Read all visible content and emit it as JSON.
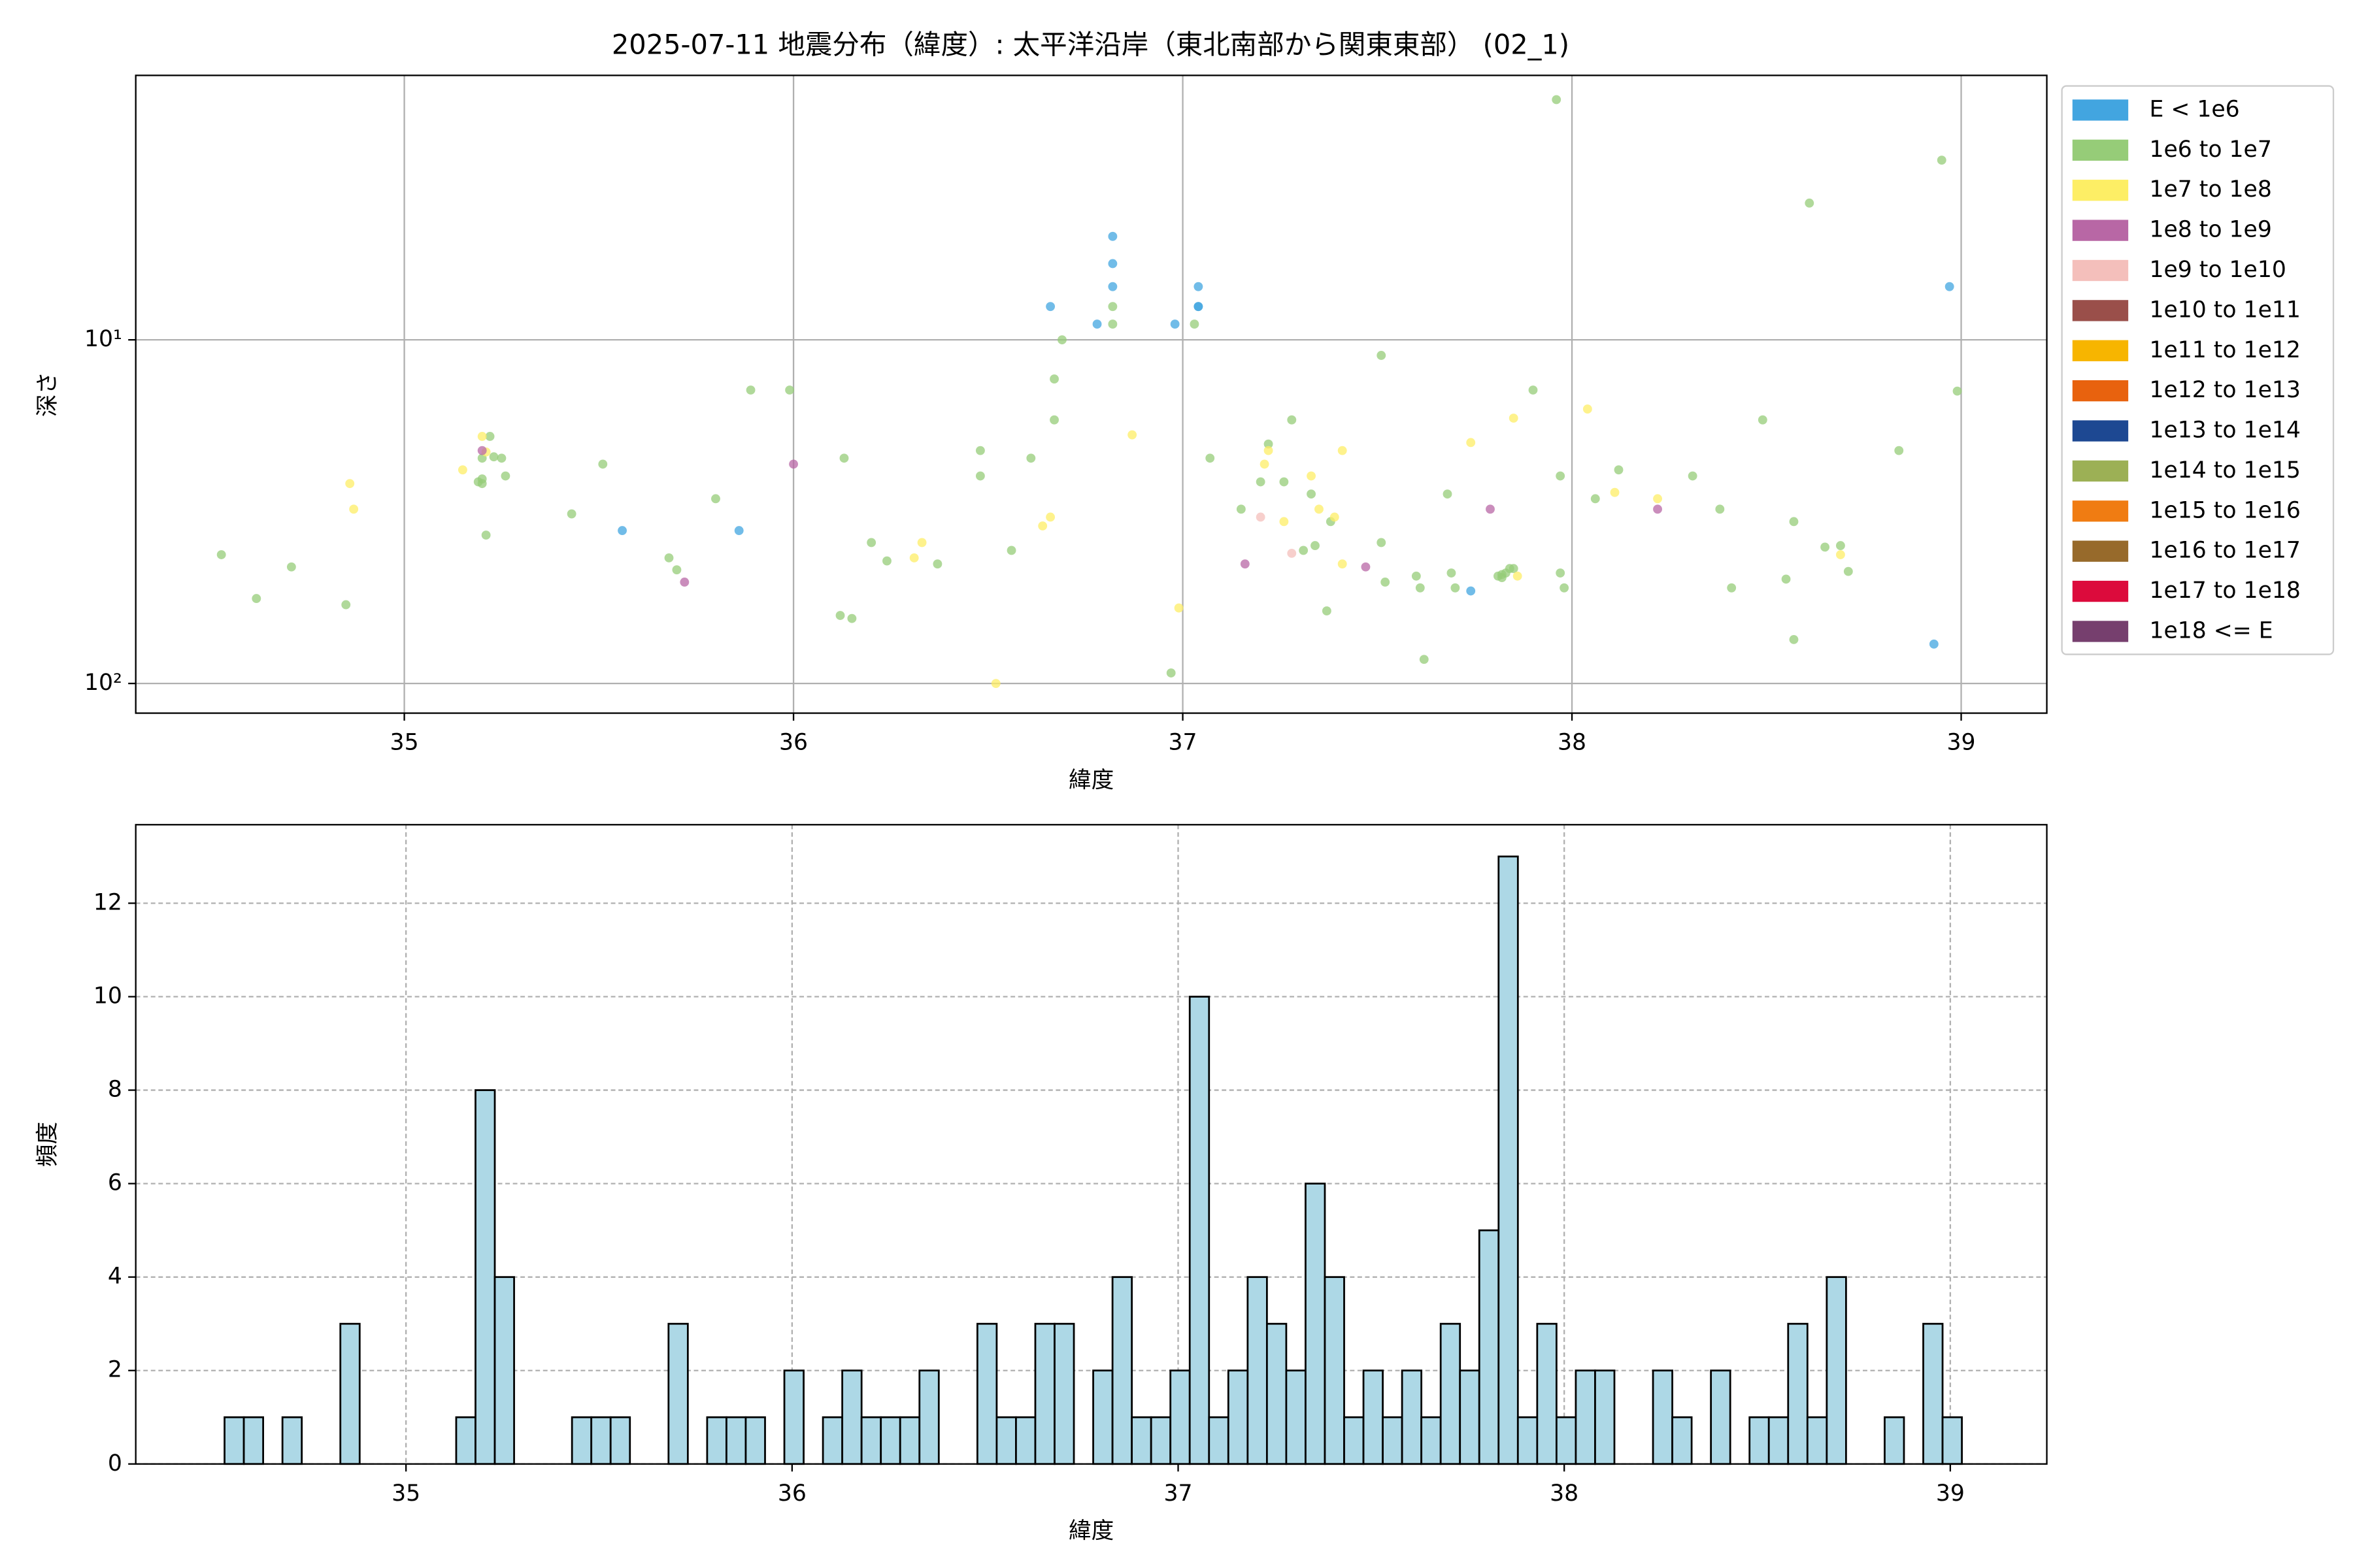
{
  "chart_data": [
    {
      "type": "scatter",
      "title": "2025-07-11 地震分布（緯度）: 太平洋沿岸（東北南部から関東東部） (02_1)",
      "x_label": "緯度",
      "y_label": "深さ",
      "xlim": [
        34.31,
        39.22
      ],
      "xticks": [
        35,
        36,
        37,
        38,
        39
      ],
      "ylim": [
        122,
        1.7
      ],
      "yscale": "log",
      "yticks": [
        {
          "value": 10,
          "label": "10¹"
        },
        {
          "value": 100,
          "label": "10²"
        }
      ],
      "grid": true,
      "legend": "outside-right",
      "series": [
        {
          "name": "E < 1e6",
          "color": "#42a5e0",
          "x": [
            35.56,
            35.86,
            36.66,
            36.78,
            36.82,
            36.82,
            36.82,
            36.98,
            37.04,
            37.04,
            37.04,
            37.74,
            38.93,
            38.97
          ],
          "y": [
            35.9,
            35.9,
            8.0,
            9.0,
            5.0,
            6.0,
            7.0,
            9.0,
            7.0,
            8.0,
            8.0,
            53.8,
            76.8,
            7.0
          ]
        },
        {
          "name": "1e6 to 1e7",
          "color": "#96cc78",
          "x": [
            34.53,
            34.62,
            34.71,
            34.85,
            35.19,
            35.2,
            35.2,
            35.2,
            35.22,
            35.23,
            35.25,
            35.26,
            35.21,
            35.43,
            35.51,
            35.68,
            35.7,
            35.8,
            35.89,
            35.99,
            36.12,
            36.13,
            36.15,
            36.2,
            36.24,
            36.37,
            36.48,
            36.48,
            36.56,
            36.61,
            36.67,
            36.67,
            36.69,
            36.82,
            36.82,
            36.97,
            37.03,
            37.07,
            37.15,
            37.2,
            37.22,
            37.26,
            37.28,
            37.31,
            37.33,
            37.34,
            37.37,
            37.38,
            37.51,
            37.51,
            37.52,
            37.6,
            37.61,
            37.62,
            37.68,
            37.69,
            37.7,
            37.81,
            37.82,
            37.83,
            37.84,
            37.85,
            37.82,
            37.9,
            37.96,
            37.97,
            37.97,
            37.98,
            38.06,
            38.12,
            38.31,
            38.38,
            38.41,
            38.49,
            38.55,
            38.57,
            38.57,
            38.61,
            38.65,
            38.69,
            38.71,
            38.84,
            38.95,
            38.99
          ],
          "y": [
            42.2,
            56.6,
            45.8,
            59.0,
            25.9,
            22.1,
            25.4,
            26.2,
            19.1,
            21.9,
            22.1,
            24.9,
            37.0,
            32.1,
            23.0,
            43.1,
            46.7,
            29.0,
            14.0,
            14.0,
            63.4,
            22.1,
            64.7,
            38.9,
            44.0,
            44.9,
            21.0,
            24.9,
            41.0,
            22.1,
            13.0,
            17.1,
            10.0,
            8.0,
            9.0,
            93.2,
            9.0,
            22.1,
            31.1,
            25.9,
            20.1,
            25.9,
            17.1,
            41.0,
            28.1,
            39.7,
            61.5,
            33.8,
            11.1,
            38.9,
            50.7,
            48.7,
            52.7,
            85.1,
            28.1,
            47.7,
            52.7,
            48.7,
            48.2,
            47.7,
            46.3,
            46.3,
            49.2,
            14.0,
            2.0,
            24.9,
            47.7,
            52.7,
            29.0,
            23.9,
            24.9,
            31.1,
            52.7,
            17.1,
            49.7,
            33.8,
            74.5,
            4.0,
            40.1,
            39.7,
            47.2,
            21.0,
            3.0,
            14.1
          ]
        },
        {
          "name": "1e7 to 1e8",
          "color": "#fdee65",
          "x": [
            34.86,
            34.87,
            35.15,
            35.2,
            35.21,
            36.31,
            36.33,
            36.52,
            36.64,
            36.66,
            36.87,
            36.99,
            37.21,
            37.22,
            37.26,
            37.33,
            37.35,
            37.39,
            37.41,
            37.41,
            37.74,
            37.85,
            37.86,
            38.04,
            38.11,
            38.22,
            38.69
          ],
          "y": [
            26.2,
            31.1,
            23.9,
            19.1,
            21.2,
            43.1,
            38.9,
            100,
            34.8,
            32.8,
            18.9,
            60.3,
            23.0,
            21.0,
            33.8,
            24.9,
            31.1,
            32.8,
            44.9,
            21.0,
            19.9,
            16.9,
            48.7,
            15.9,
            27.8,
            29.0,
            42.2
          ]
        },
        {
          "name": "1e8 to 1e9",
          "color": "#b867a5",
          "x": [
            35.2,
            35.72,
            36.0,
            37.16,
            37.47,
            37.79,
            38.22
          ],
          "y": [
            21.0,
            50.7,
            23.0,
            44.9,
            45.8,
            31.1,
            31.1
          ]
        },
        {
          "name": "1e9 to 1e10",
          "color": "#f4bfbb",
          "x": [
            37.2,
            37.28
          ],
          "y": [
            32.8,
            41.8
          ]
        },
        {
          "name": "1e10 to 1e11",
          "color": "#9a4f4a",
          "x": [],
          "y": []
        },
        {
          "name": "1e11 to 1e12",
          "color": "#f7b500",
          "x": [],
          "y": []
        },
        {
          "name": "1e12 to 1e13",
          "color": "#e8620e",
          "x": [],
          "y": []
        },
        {
          "name": "1e13 to 1e14",
          "color": "#1d4892",
          "x": [],
          "y": []
        },
        {
          "name": "1e14 to 1e15",
          "color": "#9cb055",
          "x": [],
          "y": []
        },
        {
          "name": "1e15 to 1e16",
          "color": "#f07c12",
          "x": [],
          "y": []
        },
        {
          "name": "1e16 to 1e17",
          "color": "#976a2b",
          "x": [],
          "y": []
        },
        {
          "name": "1e17 to 1e18",
          "color": "#dc0b3c",
          "x": [],
          "y": []
        },
        {
          "name": "1e18 <= E",
          "color": "#763f6e",
          "x": [],
          "y": []
        }
      ]
    },
    {
      "type": "histogram",
      "x_label": "緯度",
      "y_label": "頻度",
      "xlim": [
        34.3,
        39.25
      ],
      "xticks": [
        35,
        36,
        37,
        38,
        39
      ],
      "ylim": [
        0,
        13.68
      ],
      "yticks": [
        0,
        2,
        4,
        6,
        8,
        10,
        12
      ],
      "grid": true,
      "color": "#add8e6",
      "bins": [
        34.53,
        34.58,
        34.63,
        34.68,
        34.73,
        34.78,
        34.83,
        34.88,
        34.93,
        34.98,
        35.03,
        35.08,
        35.13,
        35.18,
        35.23,
        35.28,
        35.33,
        35.38,
        35.43,
        35.48,
        35.53,
        35.58,
        35.63,
        35.68,
        35.73,
        35.78,
        35.83,
        35.88,
        35.93,
        35.98,
        36.03,
        36.08,
        36.13,
        36.18,
        36.23,
        36.28,
        36.33,
        36.38,
        36.43,
        36.48,
        36.53,
        36.58,
        36.63,
        36.68,
        36.73,
        36.78,
        36.83,
        36.88,
        36.93,
        36.98,
        37.03,
        37.08,
        37.13,
        37.18,
        37.23,
        37.28,
        37.33,
        37.38,
        37.43,
        37.48,
        37.53,
        37.58,
        37.63,
        37.68,
        37.73,
        37.78,
        37.83,
        37.88,
        37.93,
        37.98,
        38.03,
        38.08,
        38.13,
        38.18,
        38.23,
        38.28,
        38.33,
        38.38,
        38.43,
        38.48,
        38.53,
        38.58,
        38.63,
        38.68,
        38.73,
        38.78,
        38.83,
        38.88,
        38.93,
        38.98,
        39.03
      ],
      "values": [
        1,
        1,
        0,
        1,
        0,
        0,
        3,
        0,
        0,
        0,
        0,
        0,
        1,
        8,
        4,
        0,
        0,
        0,
        1,
        1,
        1,
        0,
        0,
        3,
        0,
        1,
        1,
        1,
        0,
        2,
        0,
        1,
        2,
        1,
        1,
        1,
        2,
        0,
        0,
        3,
        1,
        1,
        3,
        3,
        0,
        2,
        4,
        1,
        1,
        2,
        10,
        1,
        2,
        4,
        3,
        2,
        6,
        4,
        1,
        2,
        1,
        2,
        1,
        3,
        2,
        5,
        13,
        1,
        3,
        1,
        2,
        2,
        0,
        0,
        2,
        1,
        0,
        2,
        0,
        1,
        1,
        3,
        1,
        4,
        0,
        0,
        1,
        0,
        3,
        1
      ]
    }
  ]
}
